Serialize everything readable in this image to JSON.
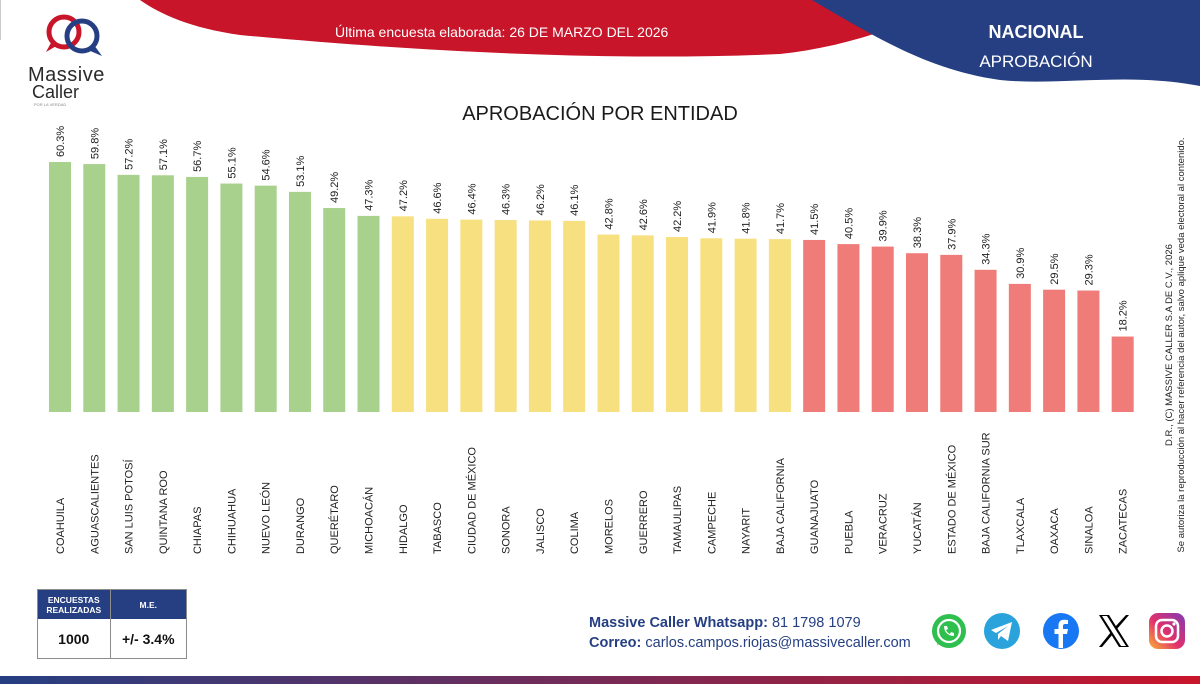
{
  "brand": {
    "name_line1": "Massive",
    "name_line2": "Caller",
    "tagline": "POR LA VERDAD",
    "colors": {
      "navy": "#253f82",
      "red": "#c8152a",
      "green": "#a9d18e",
      "yellow": "#f7e07f",
      "salmon": "#ef7c78"
    }
  },
  "header": {
    "survey_date": "Última encuesta elaborada: 26 DE MARZO DEL 2026",
    "scope": "NACIONAL",
    "metric": "APROBACIÓN"
  },
  "copyright": {
    "line1": "D.R., (C) MASSIVE CALLER S.A DE C.V., 2026",
    "line2": "Se autoriza la reproducción al hacer referencia del autor, salvo aplique veda electoral al contenido."
  },
  "stats": {
    "surveys_label": "ENCUESTAS REALIZADAS",
    "surveys_value": "1000",
    "me_label": "M.E.",
    "me_value": "+/- 3.4%"
  },
  "contact": {
    "whatsapp_label": "Massive Caller Whatsapp:",
    "whatsapp_value": "81 1798 1079",
    "email_label": "Correo:",
    "email_value": "carlos.campos.riojas@massivecaller.com"
  },
  "social": [
    "whatsapp-icon",
    "telegram-icon",
    "facebook-icon",
    "x-icon",
    "instagram-icon"
  ],
  "chart_data": {
    "type": "bar",
    "title": "APROBACIÓN POR ENTIDAD",
    "xlabel": "",
    "ylabel": "",
    "ylim": [
      0,
      60.3
    ],
    "grid": false,
    "value_suffix": "%",
    "categories": [
      "COAHUILA",
      "AGUASCALIENTES",
      "SAN LUIS POTOSÍ",
      "QUINTANA ROO",
      "CHIAPAS",
      "CHIHUAHUA",
      "NUEVO LEÓN",
      "DURANGO",
      "QUERÉTARO",
      "MICHOACÁN",
      "HIDALGO",
      "TABASCO",
      "CIUDAD DE MÉXICO",
      "SONORA",
      "JALISCO",
      "COLIMA",
      "MORELOS",
      "GUERRERO",
      "TAMAULIPAS",
      "CAMPECHE",
      "NAYARIT",
      "BAJA CALIFORNIA",
      "GUANAJUATO",
      "PUEBLA",
      "VERACRUZ",
      "YUCATÁN",
      "ESTADO DE MÉXICO",
      "BAJA CALIFORNIA SUR",
      "TLAXCALA",
      "OAXACA",
      "SINALOA",
      "ZACATECAS"
    ],
    "values": [
      60.3,
      59.8,
      57.2,
      57.1,
      56.7,
      55.1,
      54.6,
      53.1,
      49.2,
      47.3,
      47.2,
      46.6,
      46.4,
      46.3,
      46.2,
      46.1,
      42.8,
      42.6,
      42.2,
      41.9,
      41.8,
      41.7,
      41.5,
      40.5,
      39.9,
      38.3,
      37.9,
      34.3,
      30.9,
      29.5,
      29.3,
      18.2
    ],
    "labels": [
      "60.3%",
      "59.8%",
      "57.2%",
      "57.1%",
      "56.7%",
      "55.1%",
      "54.6%",
      "53.1%",
      "49.2%",
      "47.3%",
      "47.2%",
      "46.6%",
      "46.4%",
      "46.3%",
      "46.2%",
      "46.1%",
      "42.8%",
      "42.6%",
      "42.2%",
      "41.9%",
      "41.8%",
      "41.7%",
      "41.5%",
      "40.5%",
      "39.9%",
      "38.3%",
      "37.9%",
      "34.3%",
      "30.9%",
      "29.5%",
      "29.3%",
      "18.2%"
    ],
    "groups": [
      "green",
      "green",
      "green",
      "green",
      "green",
      "green",
      "green",
      "green",
      "green",
      "green",
      "yellow",
      "yellow",
      "yellow",
      "yellow",
      "yellow",
      "yellow",
      "yellow",
      "yellow",
      "yellow",
      "yellow",
      "yellow",
      "yellow",
      "salmon",
      "salmon",
      "salmon",
      "salmon",
      "salmon",
      "salmon",
      "salmon",
      "salmon",
      "salmon",
      "salmon"
    ]
  }
}
